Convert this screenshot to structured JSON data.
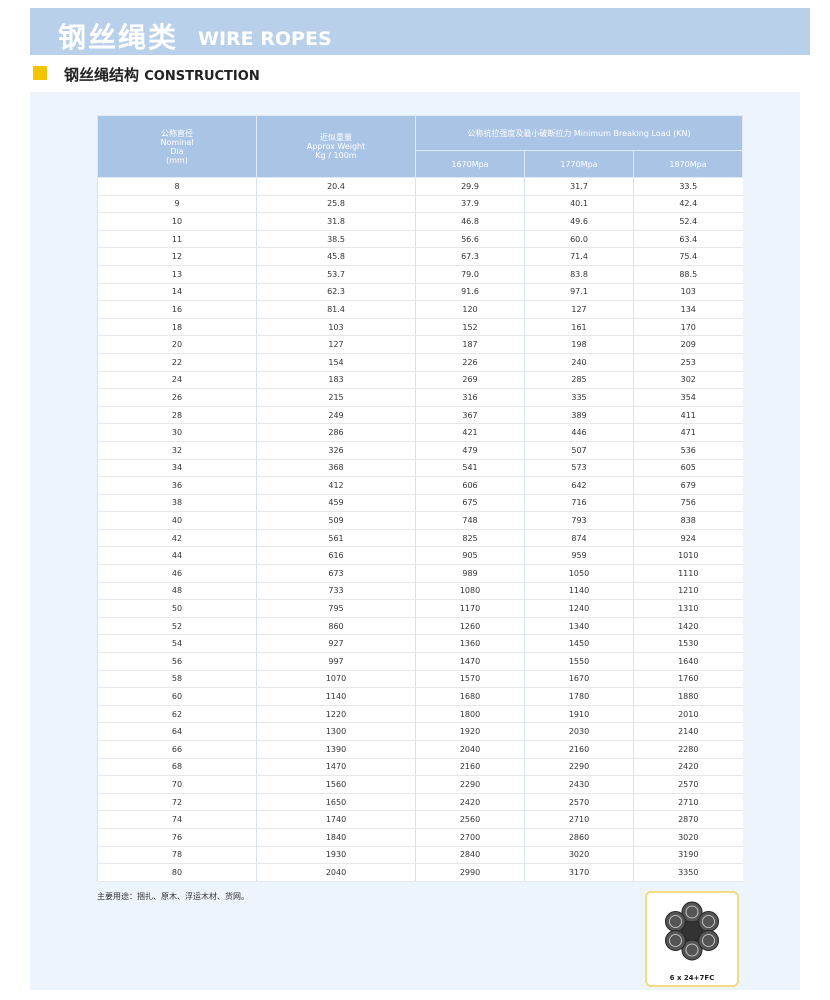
{
  "header": {
    "title_cn": "钢丝绳类",
    "title_en": "WIRE ROPES"
  },
  "section": {
    "title_cn": "钢丝绳结构",
    "title_en": "CONSTRUCTION"
  },
  "table": {
    "columns": [
      [
        "公称直径",
        "Nominal",
        "Dia",
        "(mm)"
      ],
      [
        "近似重量",
        "Approx Weight",
        "Kg / 100m"
      ]
    ],
    "group_header": "公称抗拉强度及最小破断拉力 Minimum Breaking Load (KN)",
    "subheaders": [
      "1670Mpa",
      "1770Mpa",
      "1870Mpa"
    ],
    "rows": [
      [
        "8",
        "20.4",
        "29.9",
        "31.7",
        "33.5"
      ],
      [
        "9",
        "25.8",
        "37.9",
        "40.1",
        "42.4"
      ],
      [
        "10",
        "31.8",
        "46.8",
        "49.6",
        "52.4"
      ],
      [
        "11",
        "38.5",
        "56.6",
        "60.0",
        "63.4"
      ],
      [
        "12",
        "45.8",
        "67.3",
        "71.4",
        "75.4"
      ],
      [
        "13",
        "53.7",
        "79.0",
        "83.8",
        "88.5"
      ],
      [
        "14",
        "62.3",
        "91.6",
        "97.1",
        "103"
      ],
      [
        "16",
        "81.4",
        "120",
        "127",
        "134"
      ],
      [
        "18",
        "103",
        "152",
        "161",
        "170"
      ],
      [
        "20",
        "127",
        "187",
        "198",
        "209"
      ],
      [
        "22",
        "154",
        "226",
        "240",
        "253"
      ],
      [
        "24",
        "183",
        "269",
        "285",
        "302"
      ],
      [
        "26",
        "215",
        "316",
        "335",
        "354"
      ],
      [
        "28",
        "249",
        "367",
        "389",
        "411"
      ],
      [
        "30",
        "286",
        "421",
        "446",
        "471"
      ],
      [
        "32",
        "326",
        "479",
        "507",
        "536"
      ],
      [
        "34",
        "368",
        "541",
        "573",
        "605"
      ],
      [
        "36",
        "412",
        "606",
        "642",
        "679"
      ],
      [
        "38",
        "459",
        "675",
        "716",
        "756"
      ],
      [
        "40",
        "509",
        "748",
        "793",
        "838"
      ],
      [
        "42",
        "561",
        "825",
        "874",
        "924"
      ],
      [
        "44",
        "616",
        "905",
        "959",
        "1010"
      ],
      [
        "46",
        "673",
        "989",
        "1050",
        "1110"
      ],
      [
        "48",
        "733",
        "1080",
        "1140",
        "1210"
      ],
      [
        "50",
        "795",
        "1170",
        "1240",
        "1310"
      ],
      [
        "52",
        "860",
        "1260",
        "1340",
        "1420"
      ],
      [
        "54",
        "927",
        "1360",
        "1450",
        "1530"
      ],
      [
        "56",
        "997",
        "1470",
        "1550",
        "1640"
      ],
      [
        "58",
        "1070",
        "1570",
        "1670",
        "1760"
      ],
      [
        "60",
        "1140",
        "1680",
        "1780",
        "1880"
      ],
      [
        "62",
        "1220",
        "1800",
        "1910",
        "2010"
      ],
      [
        "64",
        "1300",
        "1920",
        "2030",
        "2140"
      ],
      [
        "66",
        "1390",
        "2040",
        "2160",
        "2280"
      ],
      [
        "68",
        "1470",
        "2160",
        "2290",
        "2420"
      ],
      [
        "70",
        "1560",
        "2290",
        "2430",
        "2570"
      ],
      [
        "72",
        "1650",
        "2420",
        "2570",
        "2710"
      ],
      [
        "74",
        "1740",
        "2560",
        "2710",
        "2870"
      ],
      [
        "76",
        "1840",
        "2700",
        "2860",
        "3020"
      ],
      [
        "78",
        "1930",
        "2840",
        "3020",
        "3190"
      ],
      [
        "80",
        "2040",
        "2990",
        "3170",
        "3350"
      ]
    ]
  },
  "note": "主要用途：捆扎、原木、浮运木材、货网。",
  "figure": {
    "caption": "6 x 24+7FC"
  }
}
